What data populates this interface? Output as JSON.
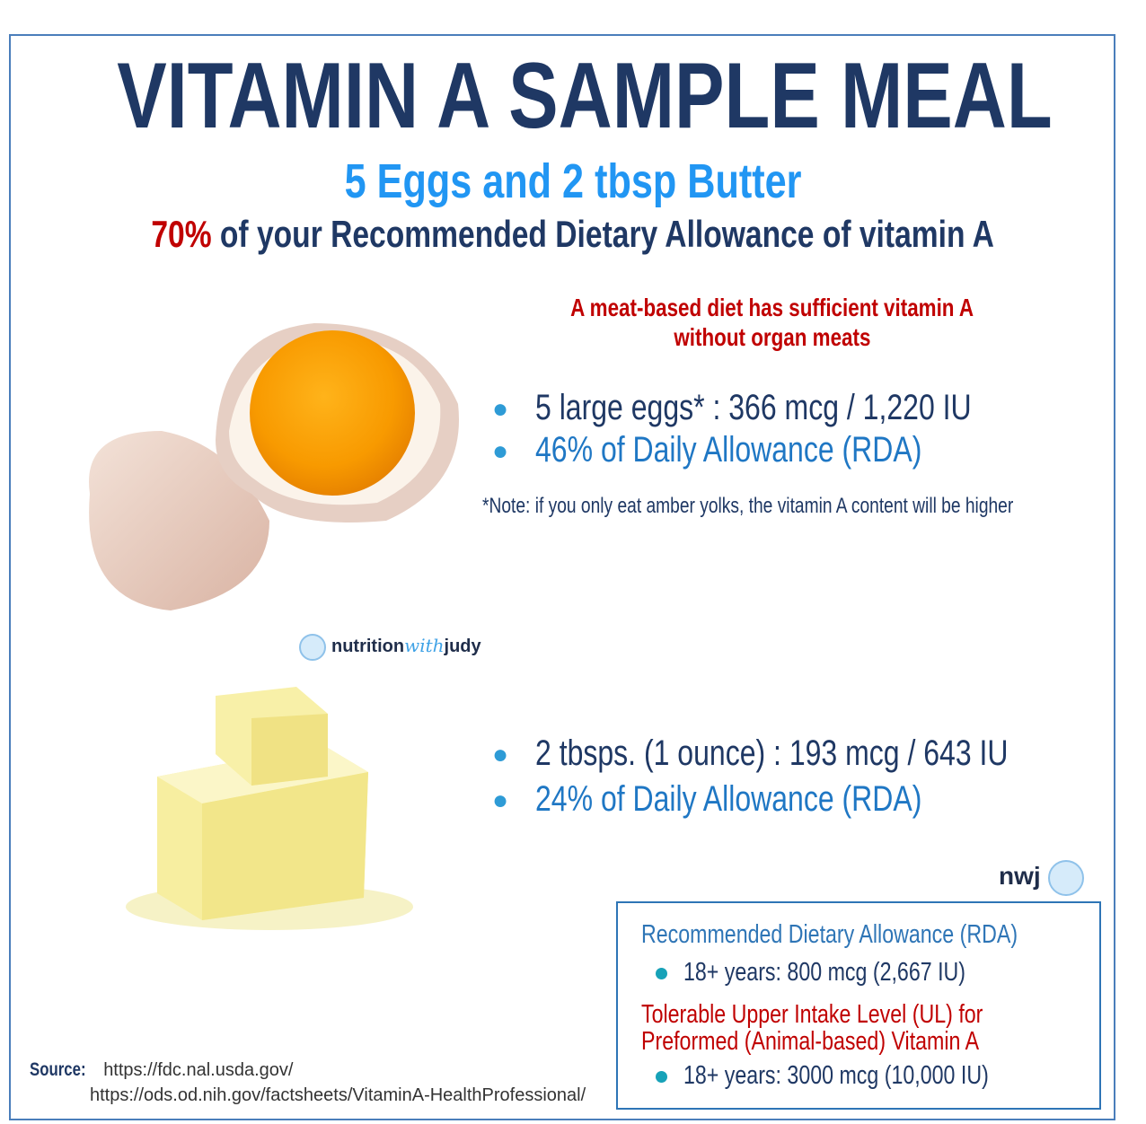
{
  "header": {
    "title": "VITAMIN A SAMPLE MEAL",
    "subtitle": "5 Eggs and 2 tbsp Butter",
    "headline_percent": "70%",
    "headline_rest": "of your Recommended Dietary Allowance of vitamin A"
  },
  "note": {
    "line1": "A meat-based diet has sufficient vitamin A",
    "line2": "without organ meats"
  },
  "eggs": {
    "bullets": [
      "5 large eggs* : 366 mcg / 1,220 IU",
      "46% of Daily Allowance (RDA)"
    ],
    "footnote": "*Note: if you only eat amber yolks, the vitamin A content will be higher"
  },
  "logo": {
    "part1": "nutrition",
    "part2": "with",
    "part3": "judy",
    "short": "nwj"
  },
  "butter": {
    "bullets": [
      "2 tbsps. (1 ounce) : 193 mcg / 643 IU",
      "24% of Daily Allowance (RDA)"
    ]
  },
  "box": {
    "rda_heading": "Recommended Dietary Allowance (RDA)",
    "rda_bullet": "18+ years:  800 mcg  (2,667 IU)",
    "ul_heading_1": "Tolerable Upper Intake Level (UL) for",
    "ul_heading_2": "Preformed (Animal-based) Vitamin A",
    "ul_bullet": "18+ years:  3000 mcg  (10,000 IU)"
  },
  "source": {
    "label": "Source:",
    "urls": [
      "https://fdc.nal.usda.gov/",
      "https://ods.od.nih.gov/factsheets/VitaminA-HealthProfessional/"
    ]
  }
}
